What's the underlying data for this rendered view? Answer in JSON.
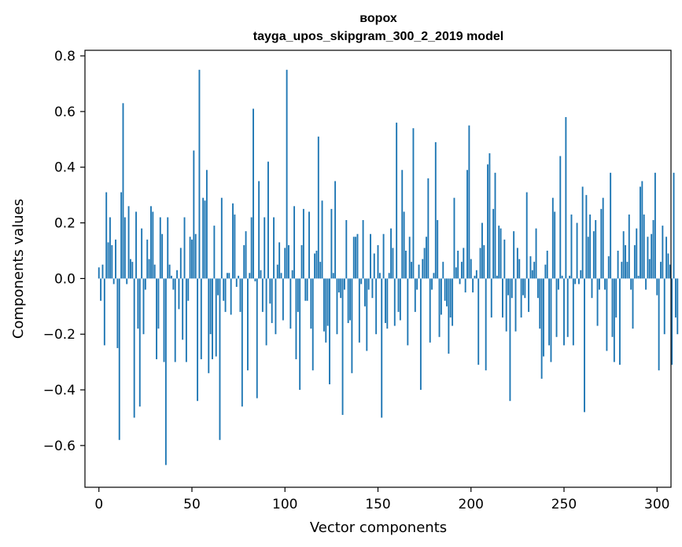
{
  "chart_data": {
    "type": "bar",
    "title": "ворох",
    "subtitle": "tayga_upos_skipgram_300_2_2019 model",
    "xlabel": "Vector components",
    "ylabel": "Components values",
    "xlim": [
      -7.5,
      307.5
    ],
    "ylim": [
      -0.75,
      0.82
    ],
    "xticks": [
      0,
      50,
      100,
      150,
      200,
      250,
      300
    ],
    "yticks": [
      -0.6,
      -0.4,
      -0.2,
      0.0,
      0.2,
      0.4,
      0.6,
      0.8
    ],
    "ytick_labels": [
      "−0.6",
      "−0.4",
      "−0.2",
      "0.0",
      "0.2",
      "0.4",
      "0.6",
      "0.8"
    ],
    "grid": false,
    "bar_color": "#1f77b4",
    "values": [
      0.04,
      -0.08,
      0.05,
      -0.24,
      0.31,
      0.13,
      0.22,
      0.12,
      -0.02,
      0.14,
      -0.25,
      -0.58,
      0.31,
      0.63,
      0.22,
      -0.02,
      0.26,
      0.07,
      0.06,
      -0.5,
      0.24,
      -0.18,
      -0.46,
      0.18,
      -0.2,
      -0.04,
      0.14,
      0.07,
      0.26,
      0.24,
      0.05,
      -0.29,
      -0.18,
      0.22,
      0.16,
      -0.3,
      -0.67,
      0.22,
      0.05,
      0.01,
      -0.04,
      -0.3,
      0.03,
      -0.11,
      0.11,
      -0.22,
      0.22,
      -0.3,
      -0.08,
      0.15,
      0.14,
      0.46,
      0.16,
      -0.44,
      0.75,
      -0.29,
      0.29,
      0.28,
      0.39,
      -0.34,
      -0.2,
      -0.29,
      0.19,
      -0.28,
      -0.06,
      -0.58,
      0.29,
      -0.08,
      -0.12,
      0.02,
      0.02,
      -0.13,
      0.27,
      0.23,
      -0.03,
      0.01,
      -0.12,
      -0.46,
      0.12,
      0.17,
      -0.33,
      0.02,
      0.22,
      0.61,
      -0.01,
      -0.43,
      0.35,
      0.03,
      -0.12,
      0.22,
      -0.24,
      0.42,
      -0.09,
      -0.16,
      0.22,
      -0.2,
      0.05,
      0.13,
      0.02,
      -0.15,
      0.11,
      0.75,
      0.12,
      -0.18,
      0.03,
      0.26,
      -0.29,
      -0.12,
      -0.4,
      0.12,
      0.25,
      -0.08,
      -0.08,
      0.24,
      -0.18,
      -0.33,
      0.09,
      0.1,
      0.51,
      0.06,
      0.28,
      -0.19,
      -0.23,
      -0.17,
      -0.38,
      0.25,
      0.02,
      0.35,
      -0.2,
      -0.05,
      -0.07,
      -0.49,
      -0.04,
      0.21,
      -0.16,
      -0.15,
      -0.34,
      0.15,
      0.15,
      0.16,
      -0.23,
      -0.02,
      0.21,
      -0.1,
      -0.26,
      -0.04,
      0.16,
      -0.07,
      0.09,
      -0.2,
      0.12,
      0.02,
      -0.5,
      0.16,
      -0.16,
      -0.18,
      0.02,
      0.18,
      0.11,
      -0.17,
      0.56,
      -0.12,
      -0.15,
      0.39,
      0.24,
      0.1,
      -0.24,
      0.15,
      0.06,
      0.54,
      -0.12,
      -0.04,
      0.05,
      -0.4,
      0.07,
      0.11,
      0.15,
      0.36,
      -0.23,
      -0.04,
      0.02,
      0.49,
      0.21,
      -0.21,
      -0.13,
      0.06,
      -0.08,
      -0.1,
      -0.27,
      -0.14,
      -0.17,
      0.29,
      0.04,
      0.1,
      -0.02,
      0.06,
      0.11,
      -0.05,
      0.39,
      0.55,
      0.07,
      -0.05,
      0.01,
      0.03,
      -0.31,
      0.11,
      0.2,
      0.12,
      -0.33,
      0.41,
      0.45,
      -0.14,
      0.25,
      0.38,
      0.01,
      0.19,
      0.18,
      -0.14,
      0.14,
      -0.19,
      -0.06,
      -0.44,
      -0.07,
      0.17,
      -0.19,
      0.11,
      0.07,
      -0.14,
      -0.06,
      -0.07,
      0.31,
      -0.12,
      0.08,
      0.03,
      0.06,
      0.18,
      -0.07,
      -0.18,
      -0.36,
      -0.28,
      0.05,
      0.1,
      -0.24,
      -0.3,
      0.29,
      0.24,
      -0.21,
      -0.04,
      0.44,
      0.01,
      -0.24,
      0.58,
      -0.21,
      0.01,
      0.23,
      -0.24,
      -0.02,
      0.2,
      -0.02,
      0.03,
      0.33,
      -0.48,
      0.3,
      0.15,
      0.23,
      -0.07,
      0.17,
      0.21,
      -0.17,
      -0.04,
      0.25,
      0.29,
      -0.04,
      -0.26,
      0.08,
      0.38,
      -0.21,
      -0.3,
      -0.14,
      0.1,
      -0.31,
      0.06,
      0.17,
      0.12,
      0.06,
      0.23,
      -0.04,
      -0.18,
      0.12,
      0.18,
      0.01,
      0.33,
      0.35,
      0.23,
      -0.04,
      0.15,
      0.07,
      0.16,
      0.21,
      0.38,
      -0.06,
      -0.33,
      0.06,
      0.19,
      -0.2,
      0.15,
      0.09,
      0.05,
      -0.31,
      0.38,
      -0.14,
      -0.2
    ]
  }
}
